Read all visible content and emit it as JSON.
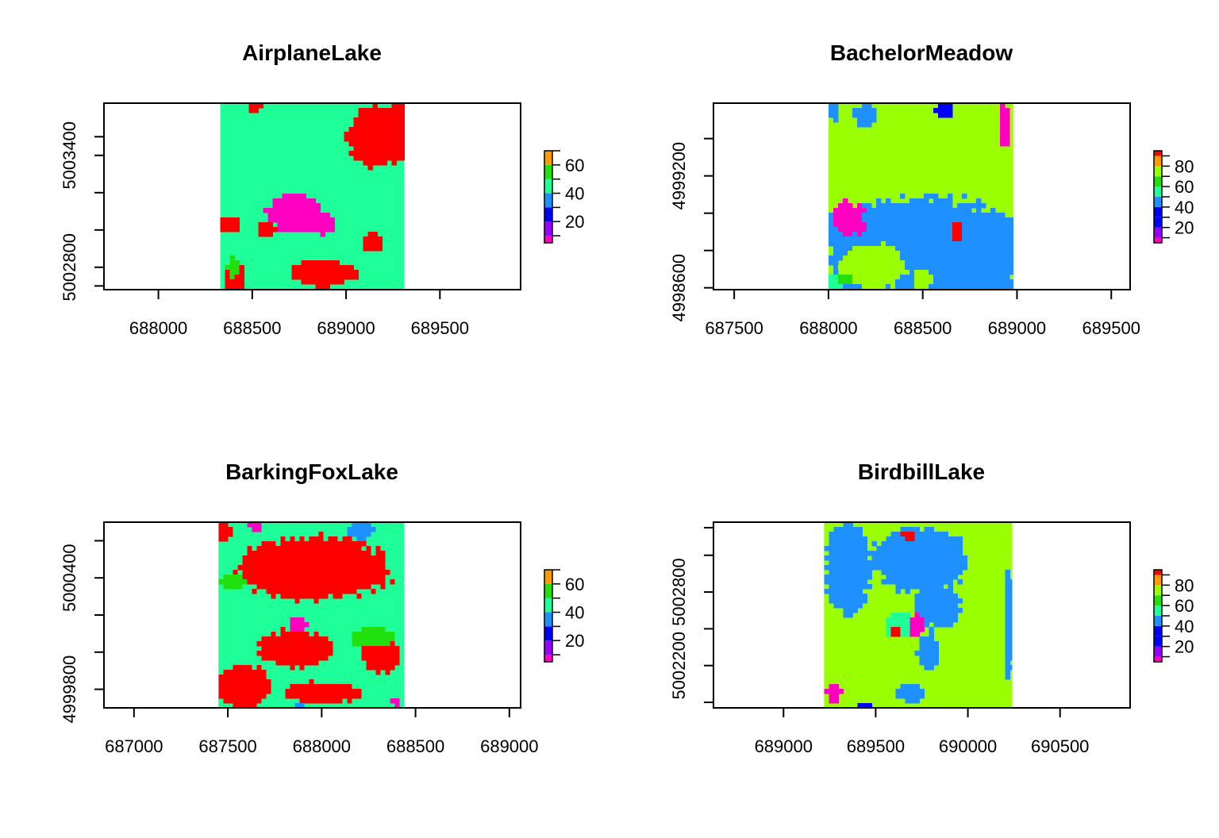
{
  "figure": {
    "panels": 4,
    "layout": "2x2"
  },
  "chart_data": [
    {
      "type": "heatmap",
      "title": "AirplaneLake",
      "xlim": [
        687710,
        689930
      ],
      "ylim": [
        5002680,
        5003680
      ],
      "raster_x": [
        688330,
        689310
      ],
      "raster_y": [
        5002680,
        5003680
      ],
      "xticks": [
        688000,
        688500,
        689000,
        689500
      ],
      "xtick_labels": [
        "688000",
        "688500",
        "689000",
        "689500"
      ],
      "yticks": [
        5002700,
        5002800,
        5003000,
        5003200,
        5003400,
        5003500
      ],
      "ytick_labels": [
        "",
        "5002800",
        "",
        "",
        "5003400",
        ""
      ],
      "legend": {
        "placement": "right",
        "breaks": [
          5,
          10,
          20,
          30,
          40,
          50,
          60,
          70
        ],
        "colors": [
          "#FF00C0",
          "#9A00FF",
          "#0000FF",
          "#1E90FF",
          "#1EFF9A",
          "#22E00E",
          "#FF9A00",
          "#FF0000"
        ],
        "ticks": [
          10,
          20,
          30,
          40,
          50,
          60,
          70
        ],
        "tick_labels": [
          "",
          "20",
          "",
          "40",
          "",
          "60",
          ""
        ]
      },
      "background_class": "#1EFF9A",
      "grid": false
    },
    {
      "type": "heatmap",
      "title": "BachelorMeadow",
      "xlim": [
        687390,
        689600
      ],
      "ylim": [
        4998590,
        4999590
      ],
      "raster_x": [
        688000,
        688980
      ],
      "raster_y": [
        4998590,
        4999590
      ],
      "xticks": [
        687500,
        688000,
        688500,
        689000,
        689500
      ],
      "xtick_labels": [
        "687500",
        "688000",
        "688500",
        "689000",
        "689500"
      ],
      "yticks": [
        4998600,
        4998800,
        4999000,
        4999200,
        4999400
      ],
      "ytick_labels": [
        "4998600",
        "",
        "",
        "4999200",
        ""
      ],
      "legend": {
        "placement": "right",
        "breaks": [
          5,
          10,
          20,
          30,
          40,
          50,
          60,
          70,
          80,
          90,
          95
        ],
        "colors": [
          "#FF00C0",
          "#9A00FF",
          "#0000FF",
          "#0000FF",
          "#1E90FF",
          "#1EFF9A",
          "#22E00E",
          "#9AFF00",
          "#FF9A00",
          "#FF0000"
        ],
        "ticks": [
          10,
          20,
          30,
          40,
          50,
          60,
          70,
          80,
          90
        ],
        "tick_labels": [
          "",
          "20",
          "",
          "40",
          "",
          "60",
          "",
          "80",
          ""
        ]
      },
      "background_class": "#9AFF00",
      "grid": false
    },
    {
      "type": "heatmap",
      "title": "BarkingFoxLake",
      "xlim": [
        686840,
        689060
      ],
      "ylim": [
        4999700,
        5000700
      ],
      "raster_x": [
        687450,
        688440
      ],
      "raster_y": [
        4999700,
        5000700
      ],
      "xticks": [
        687000,
        687500,
        688000,
        688500,
        689000
      ],
      "xtick_labels": [
        "687000",
        "687500",
        "688000",
        "688500",
        "689000"
      ],
      "yticks": [
        4999800,
        5000000,
        5000200,
        5000400,
        5000600
      ],
      "ytick_labels": [
        "4999800",
        "",
        "",
        "5000400",
        ""
      ],
      "legend": {
        "placement": "right",
        "breaks": [
          5,
          10,
          20,
          30,
          40,
          50,
          60,
          70
        ],
        "colors": [
          "#FF00C0",
          "#9A00FF",
          "#0000FF",
          "#1E90FF",
          "#1EFF9A",
          "#22E00E",
          "#FF9A00",
          "#FF0000"
        ],
        "ticks": [
          10,
          20,
          30,
          40,
          50,
          60,
          70
        ],
        "tick_labels": [
          "",
          "20",
          "",
          "40",
          "",
          "60",
          ""
        ]
      },
      "background_class": "#1EFF9A",
      "grid": false
    },
    {
      "type": "heatmap",
      "title": "BirdbillLake",
      "xlim": [
        688620,
        690880
      ],
      "ylim": [
        5001970,
        5002980
      ],
      "raster_x": [
        689220,
        690240
      ],
      "raster_y": [
        5001970,
        5002980
      ],
      "xticks": [
        689000,
        689500,
        690000,
        690500
      ],
      "xtick_labels": [
        "689000",
        "689500",
        "690000",
        "690500"
      ],
      "yticks": [
        5002000,
        5002200,
        5002400,
        5002600,
        5002800,
        5002950
      ],
      "ytick_labels": [
        "",
        "5002200",
        "",
        "5002800",
        "",
        ""
      ],
      "legend": {
        "placement": "right",
        "breaks": [
          5,
          10,
          20,
          30,
          40,
          50,
          60,
          70,
          80,
          90,
          95
        ],
        "colors": [
          "#FF00C0",
          "#9A00FF",
          "#0000FF",
          "#0000FF",
          "#1E90FF",
          "#1EFF9A",
          "#22E00E",
          "#9AFF00",
          "#FF9A00",
          "#FF0000"
        ],
        "ticks": [
          10,
          20,
          30,
          40,
          50,
          60,
          70,
          80,
          90
        ],
        "tick_labels": [
          "",
          "20",
          "",
          "40",
          "",
          "60",
          "",
          "80",
          ""
        ]
      },
      "background_class": "#9AFF00",
      "grid": false
    }
  ]
}
